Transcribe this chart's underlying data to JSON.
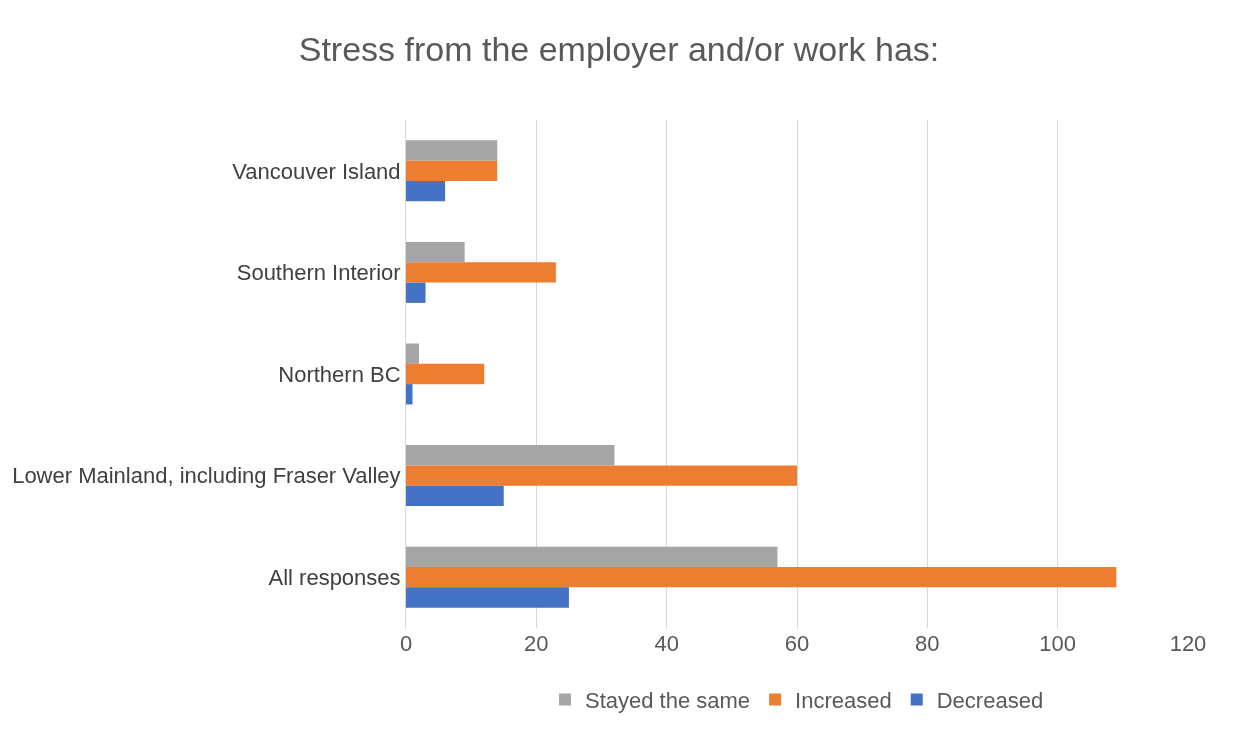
{
  "chart_data": {
    "type": "bar",
    "orientation": "horizontal",
    "title": "Stress from the employer and/or work has:",
    "categories": [
      "Vancouver Island",
      "Southern Interior",
      "Northern BC",
      "Lower Mainland, including Fraser Valley",
      "All responses"
    ],
    "series": [
      {
        "name": "Stayed the same",
        "color": "#a5a5a5",
        "values": [
          14,
          9,
          2,
          32,
          57
        ]
      },
      {
        "name": "Increased",
        "color": "#ed7d31",
        "values": [
          14,
          23,
          12,
          60,
          109
        ]
      },
      {
        "name": "Decreased",
        "color": "#4472c4",
        "values": [
          6,
          3,
          1,
          15,
          25
        ]
      }
    ],
    "xlim": [
      0,
      120
    ],
    "xticks": [
      0,
      20,
      40,
      60,
      80,
      100,
      120
    ],
    "grid": "x",
    "legend": "bottom"
  }
}
